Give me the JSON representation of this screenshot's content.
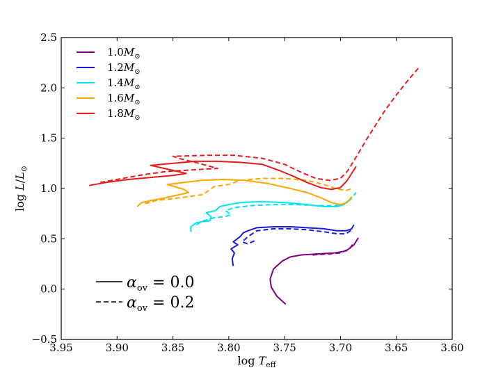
{
  "chart_data": {
    "type": "line",
    "title": "",
    "xlabel": "log T_eff",
    "ylabel": "log L/L_sun",
    "xlim": [
      3.95,
      3.6
    ],
    "ylim": [
      -0.5,
      2.5
    ],
    "x_ticks": [
      3.95,
      3.9,
      3.85,
      3.8,
      3.75,
      3.7,
      3.65,
      3.6
    ],
    "x_tick_labels": [
      "3.95",
      "3.90",
      "3.85",
      "3.80",
      "3.75",
      "3.70",
      "3.65",
      "3.60"
    ],
    "y_ticks": [
      -0.5,
      0.0,
      0.5,
      1.0,
      1.5,
      2.0,
      2.5
    ],
    "y_tick_labels": [
      "−0.5",
      "0.0",
      "0.5",
      "1.0",
      "1.5",
      "2.0",
      "2.5"
    ],
    "legend_position": "top-left",
    "style_legend": [
      {
        "label": "αov = 0.0",
        "dash": "solid",
        "alpha_value": "0.0"
      },
      {
        "label": "αov = 0.2",
        "dash": "dashed",
        "alpha_value": "0.2"
      }
    ],
    "series": [
      {
        "name": "1.0M⊙",
        "mass": "1.0",
        "color": "#800080",
        "alpha_ov": 0.0,
        "points": [
          [
            3.749,
            -0.15
          ],
          [
            3.757,
            -0.07
          ],
          [
            3.762,
            0.02
          ],
          [
            3.763,
            0.1
          ],
          [
            3.76,
            0.2
          ],
          [
            3.752,
            0.28
          ],
          [
            3.745,
            0.32
          ],
          [
            3.735,
            0.34
          ],
          [
            3.72,
            0.35
          ],
          [
            3.705,
            0.36
          ],
          [
            3.695,
            0.38
          ],
          [
            3.688,
            0.44
          ],
          [
            3.684,
            0.51
          ]
        ]
      },
      {
        "name": "1.0M⊙",
        "mass": "1.0",
        "color": "#800080",
        "alpha_ov": 0.2,
        "points": [
          [
            3.725,
            0.34
          ],
          [
            3.71,
            0.35
          ],
          [
            3.7,
            0.36
          ],
          [
            3.692,
            0.4
          ],
          [
            3.688,
            0.46
          ]
        ]
      },
      {
        "name": "1.2M⊙",
        "mass": "1.2",
        "color": "#1a1adc",
        "alpha_ov": 0.0,
        "points": [
          [
            3.796,
            0.23
          ],
          [
            3.797,
            0.3
          ],
          [
            3.795,
            0.36
          ],
          [
            3.798,
            0.4
          ],
          [
            3.792,
            0.44
          ],
          [
            3.796,
            0.47
          ],
          [
            3.79,
            0.52
          ],
          [
            3.787,
            0.56
          ],
          [
            3.783,
            0.58
          ],
          [
            3.775,
            0.61
          ],
          [
            3.76,
            0.62
          ],
          [
            3.745,
            0.62
          ],
          [
            3.73,
            0.61
          ],
          [
            3.715,
            0.6
          ],
          [
            3.703,
            0.58
          ],
          [
            3.695,
            0.58
          ],
          [
            3.69,
            0.6
          ],
          [
            3.688,
            0.64
          ]
        ]
      },
      {
        "name": "1.2M⊙",
        "mass": "1.2",
        "color": "#1a1adc",
        "alpha_ov": 0.2,
        "points": [
          [
            3.777,
            0.48
          ],
          [
            3.783,
            0.45
          ],
          [
            3.788,
            0.47
          ],
          [
            3.783,
            0.52
          ],
          [
            3.775,
            0.58
          ],
          [
            3.76,
            0.6
          ],
          [
            3.745,
            0.6
          ],
          [
            3.73,
            0.59
          ],
          [
            3.715,
            0.57
          ],
          [
            3.703,
            0.55
          ],
          [
            3.695,
            0.55
          ],
          [
            3.69,
            0.59
          ]
        ]
      },
      {
        "name": "1.4M⊙",
        "mass": "1.4",
        "color": "#00e5ee",
        "alpha_ov": 0.0,
        "points": [
          [
            3.834,
            0.57
          ],
          [
            3.834,
            0.62
          ],
          [
            3.829,
            0.66
          ],
          [
            3.824,
            0.67
          ],
          [
            3.817,
            0.68
          ],
          [
            3.816,
            0.72
          ],
          [
            3.82,
            0.76
          ],
          [
            3.812,
            0.78
          ],
          [
            3.808,
            0.82
          ],
          [
            3.8,
            0.84
          ],
          [
            3.79,
            0.86
          ],
          [
            3.77,
            0.87
          ],
          [
            3.75,
            0.86
          ],
          [
            3.73,
            0.84
          ],
          [
            3.715,
            0.82
          ],
          [
            3.703,
            0.82
          ],
          [
            3.697,
            0.84
          ],
          [
            3.693,
            0.88
          ]
        ]
      },
      {
        "name": "1.4M⊙",
        "mass": "1.4",
        "color": "#00e5ee",
        "alpha_ov": 0.2,
        "points": [
          [
            3.829,
            0.64
          ],
          [
            3.823,
            0.68
          ],
          [
            3.813,
            0.71
          ],
          [
            3.804,
            0.72
          ],
          [
            3.798,
            0.74
          ],
          [
            3.803,
            0.78
          ],
          [
            3.795,
            0.81
          ],
          [
            3.78,
            0.83
          ],
          [
            3.76,
            0.84
          ],
          [
            3.74,
            0.84
          ],
          [
            3.72,
            0.83
          ],
          [
            3.706,
            0.83
          ],
          [
            3.698,
            0.84
          ],
          [
            3.692,
            0.88
          ],
          [
            3.686,
            0.96
          ]
        ]
      },
      {
        "name": "1.6M⊙",
        "mass": "1.6",
        "color": "#ffa500",
        "alpha_ov": 0.0,
        "points": [
          [
            3.882,
            0.82
          ],
          [
            3.878,
            0.86
          ],
          [
            3.87,
            0.88
          ],
          [
            3.86,
            0.9
          ],
          [
            3.848,
            0.93
          ],
          [
            3.836,
            0.96
          ],
          [
            3.84,
            0.99
          ],
          [
            3.855,
            1.04
          ],
          [
            3.84,
            1.06
          ],
          [
            3.825,
            1.08
          ],
          [
            3.805,
            1.09
          ],
          [
            3.785,
            1.08
          ],
          [
            3.765,
            1.05
          ],
          [
            3.745,
            1.0
          ],
          [
            3.73,
            0.96
          ],
          [
            3.718,
            0.91
          ],
          [
            3.708,
            0.86
          ],
          [
            3.7,
            0.84
          ],
          [
            3.694,
            0.86
          ],
          [
            3.69,
            0.92
          ]
        ]
      },
      {
        "name": "1.6M⊙",
        "mass": "1.6",
        "color": "#ffa500",
        "alpha_ov": 0.2,
        "points": [
          [
            3.875,
            0.85
          ],
          [
            3.865,
            0.88
          ],
          [
            3.85,
            0.9
          ],
          [
            3.836,
            0.92
          ],
          [
            3.823,
            0.94
          ],
          [
            3.818,
            0.98
          ],
          [
            3.813,
            1.02
          ],
          [
            3.8,
            1.04
          ],
          [
            3.79,
            1.08
          ],
          [
            3.77,
            1.1
          ],
          [
            3.75,
            1.1
          ],
          [
            3.73,
            1.08
          ],
          [
            3.715,
            1.04
          ],
          [
            3.705,
            1.0
          ],
          [
            3.695,
            0.98
          ],
          [
            3.69,
            1.0
          ]
        ]
      },
      {
        "name": "1.8M⊙",
        "mass": "1.8",
        "color": "#e81b1b",
        "alpha_ov": 0.0,
        "points": [
          [
            3.925,
            1.03
          ],
          [
            3.91,
            1.06
          ],
          [
            3.89,
            1.09
          ],
          [
            3.87,
            1.11
          ],
          [
            3.85,
            1.13
          ],
          [
            3.838,
            1.15
          ],
          [
            3.85,
            1.18
          ],
          [
            3.87,
            1.23
          ],
          [
            3.85,
            1.25
          ],
          [
            3.83,
            1.27
          ],
          [
            3.81,
            1.27
          ],
          [
            3.79,
            1.26
          ],
          [
            3.77,
            1.24
          ],
          [
            3.755,
            1.18
          ],
          [
            3.742,
            1.12
          ],
          [
            3.73,
            1.06
          ],
          [
            3.718,
            1.01
          ],
          [
            3.708,
            0.99
          ],
          [
            3.7,
            1.01
          ],
          [
            3.694,
            1.08
          ],
          [
            3.69,
            1.15
          ],
          [
            3.686,
            1.22
          ]
        ]
      },
      {
        "name": "1.8M⊙",
        "mass": "1.8",
        "color": "#e81b1b",
        "alpha_ov": 0.2,
        "points": [
          [
            3.915,
            1.06
          ],
          [
            3.895,
            1.1
          ],
          [
            3.875,
            1.14
          ],
          [
            3.855,
            1.17
          ],
          [
            3.84,
            1.18
          ],
          [
            3.825,
            1.19
          ],
          [
            3.81,
            1.2
          ],
          [
            3.83,
            1.26
          ],
          [
            3.845,
            1.3
          ],
          [
            3.85,
            1.32
          ],
          [
            3.82,
            1.33
          ],
          [
            3.795,
            1.33
          ],
          [
            3.77,
            1.3
          ],
          [
            3.75,
            1.24
          ],
          [
            3.735,
            1.16
          ],
          [
            3.722,
            1.1
          ],
          [
            3.71,
            1.08
          ],
          [
            3.7,
            1.1
          ],
          [
            3.694,
            1.17
          ],
          [
            3.69,
            1.24
          ],
          [
            3.684,
            1.35
          ],
          [
            3.676,
            1.5
          ],
          [
            3.668,
            1.64
          ],
          [
            3.66,
            1.78
          ],
          [
            3.65,
            1.93
          ],
          [
            3.64,
            2.07
          ],
          [
            3.63,
            2.2
          ]
        ]
      }
    ],
    "legend": [
      {
        "label": "1.0M⊙",
        "mass": "1.0",
        "color": "#800080"
      },
      {
        "label": "1.2M⊙",
        "mass": "1.2",
        "color": "#1a1adc"
      },
      {
        "label": "1.4M⊙",
        "mass": "1.4",
        "color": "#00e5ee"
      },
      {
        "label": "1.6M⊙",
        "mass": "1.6",
        "color": "#ffa500"
      },
      {
        "label": "1.8M⊙",
        "mass": "1.8",
        "color": "#e81b1b"
      }
    ]
  }
}
